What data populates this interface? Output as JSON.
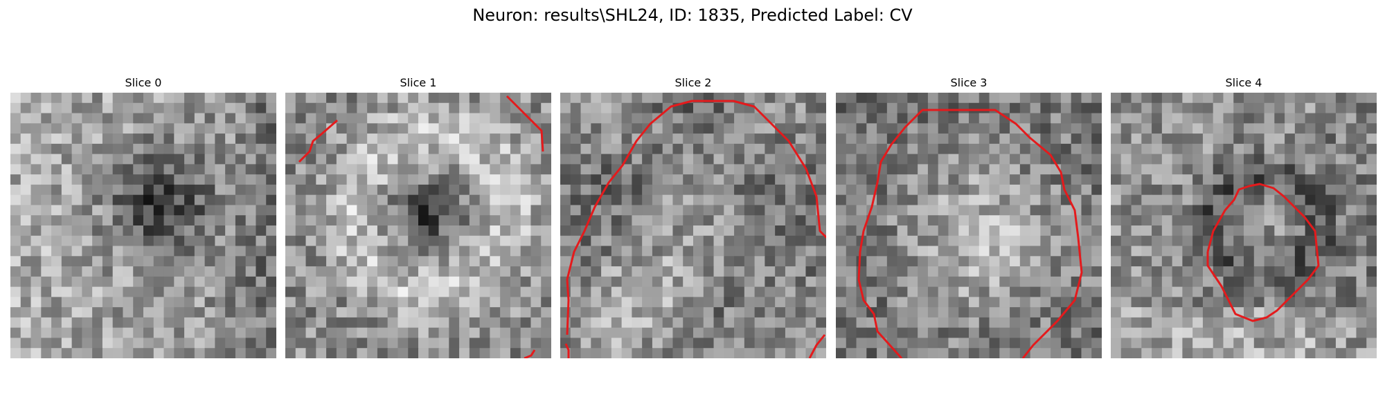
{
  "figure": {
    "suptitle": "Neuron: results\\SHL24, ID: 1835, Predicted Label: CV",
    "contour_color": "#e41a1c"
  },
  "slices": [
    {
      "title": "Slice 0",
      "description": "dark diffuse center, no contour"
    },
    {
      "title": "Slice 1",
      "description": "bright ring, contour clipped at corners"
    },
    {
      "title": "Slice 2",
      "description": "large contour covering most of tile"
    },
    {
      "title": "Slice 3",
      "description": "large round contour"
    },
    {
      "title": "Slice 4",
      "description": "small central contour"
    }
  ]
}
